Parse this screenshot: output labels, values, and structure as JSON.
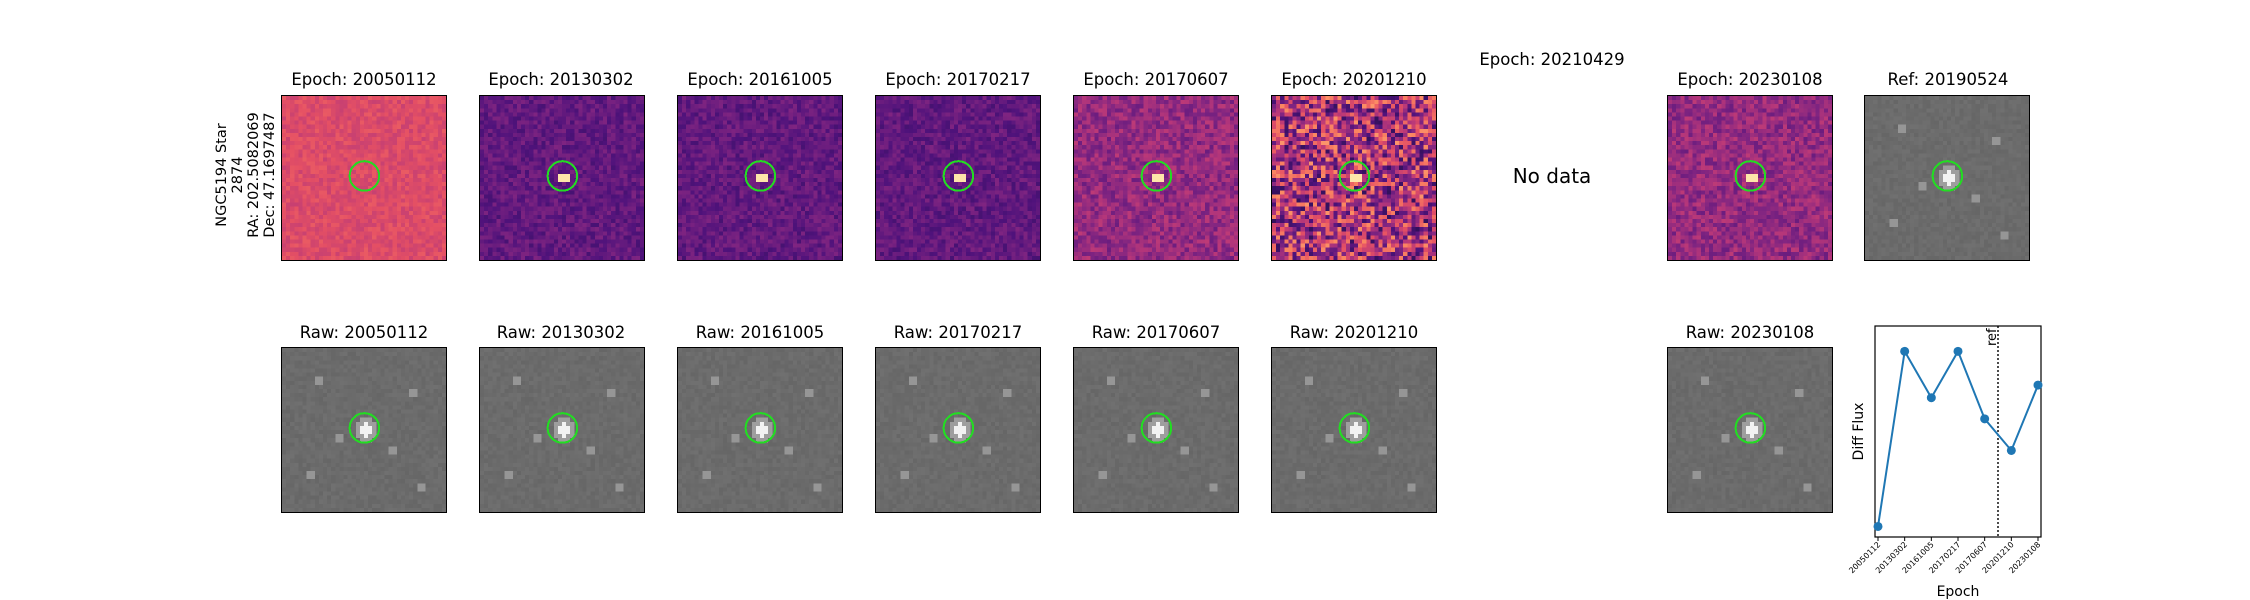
{
  "row_label": {
    "star": "NGC5194 Star 2874",
    "ra": "RA: 202.5082069",
    "dec": "Dec: 47.1697487"
  },
  "diff_panels": [
    {
      "title": "Epoch: 20050112",
      "map": "magma-light"
    },
    {
      "title": "Epoch: 20130302",
      "map": "magma-dark"
    },
    {
      "title": "Epoch: 20161005",
      "map": "magma-dark"
    },
    {
      "title": "Epoch: 20170217",
      "map": "magma-dark"
    },
    {
      "title": "Epoch: 20170607",
      "map": "magma-mid"
    },
    {
      "title": "Epoch: 20201210",
      "map": "magma-noisy"
    },
    {
      "title": "Epoch: 20210429",
      "nodata": "No data"
    },
    {
      "title": "Epoch: 20230108",
      "map": "magma-mid"
    },
    {
      "title": "Ref: 20190524",
      "map": "gray"
    }
  ],
  "raw_panels": [
    {
      "title": "Raw: 20050112",
      "map": "gray"
    },
    {
      "title": "Raw: 20130302",
      "map": "gray"
    },
    {
      "title": "Raw: 20161005",
      "map": "gray"
    },
    {
      "title": "Raw: 20170217",
      "map": "gray"
    },
    {
      "title": "Raw: 20170607",
      "map": "gray"
    },
    {
      "title": "Raw: 20201210",
      "map": "gray"
    },
    {
      "title": "Raw: 20230108",
      "map": "gray"
    }
  ],
  "colors": {
    "circle": "#22dd22",
    "line": "#1f77b4"
  },
  "chart_data": {
    "type": "line",
    "title": "",
    "xlabel": "Epoch",
    "ylabel": "Diff Flux",
    "categories": [
      "20050112",
      "20130302",
      "20161005",
      "20170217",
      "20170607",
      "20201210",
      "20230108"
    ],
    "values": [
      0.05,
      0.88,
      0.66,
      0.88,
      0.56,
      0.41,
      0.72
    ],
    "ylim": [
      0,
      1
    ],
    "reference_line": {
      "label": "ref",
      "position_between": [
        "20170607",
        "20201210"
      ],
      "style": "dotted"
    },
    "grid": false
  }
}
